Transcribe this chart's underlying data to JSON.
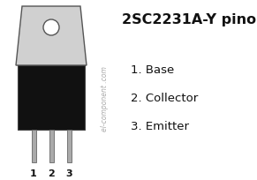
{
  "bg_color": "#ffffff",
  "title_line1": "2SC2231A-Y pinout",
  "title_fontsize": 11.5,
  "title_fontweight": "bold",
  "pin_labels": [
    "1. Base",
    "2. Collector",
    "3. Emitter"
  ],
  "pin_fontsize": 9.5,
  "watermark": "el-component .com",
  "watermark_fontsize": 5.5,
  "pin_numbers": [
    "1",
    "2",
    "3"
  ],
  "body_color": "#111111",
  "outline_color": "#444444",
  "metal_color": "#d0d0d0",
  "metal_edge": "#555555",
  "lead_color": "#aaaaaa",
  "lead_edge": "#666666",
  "text_color": "#111111",
  "watermark_color": "#aaaaaa"
}
